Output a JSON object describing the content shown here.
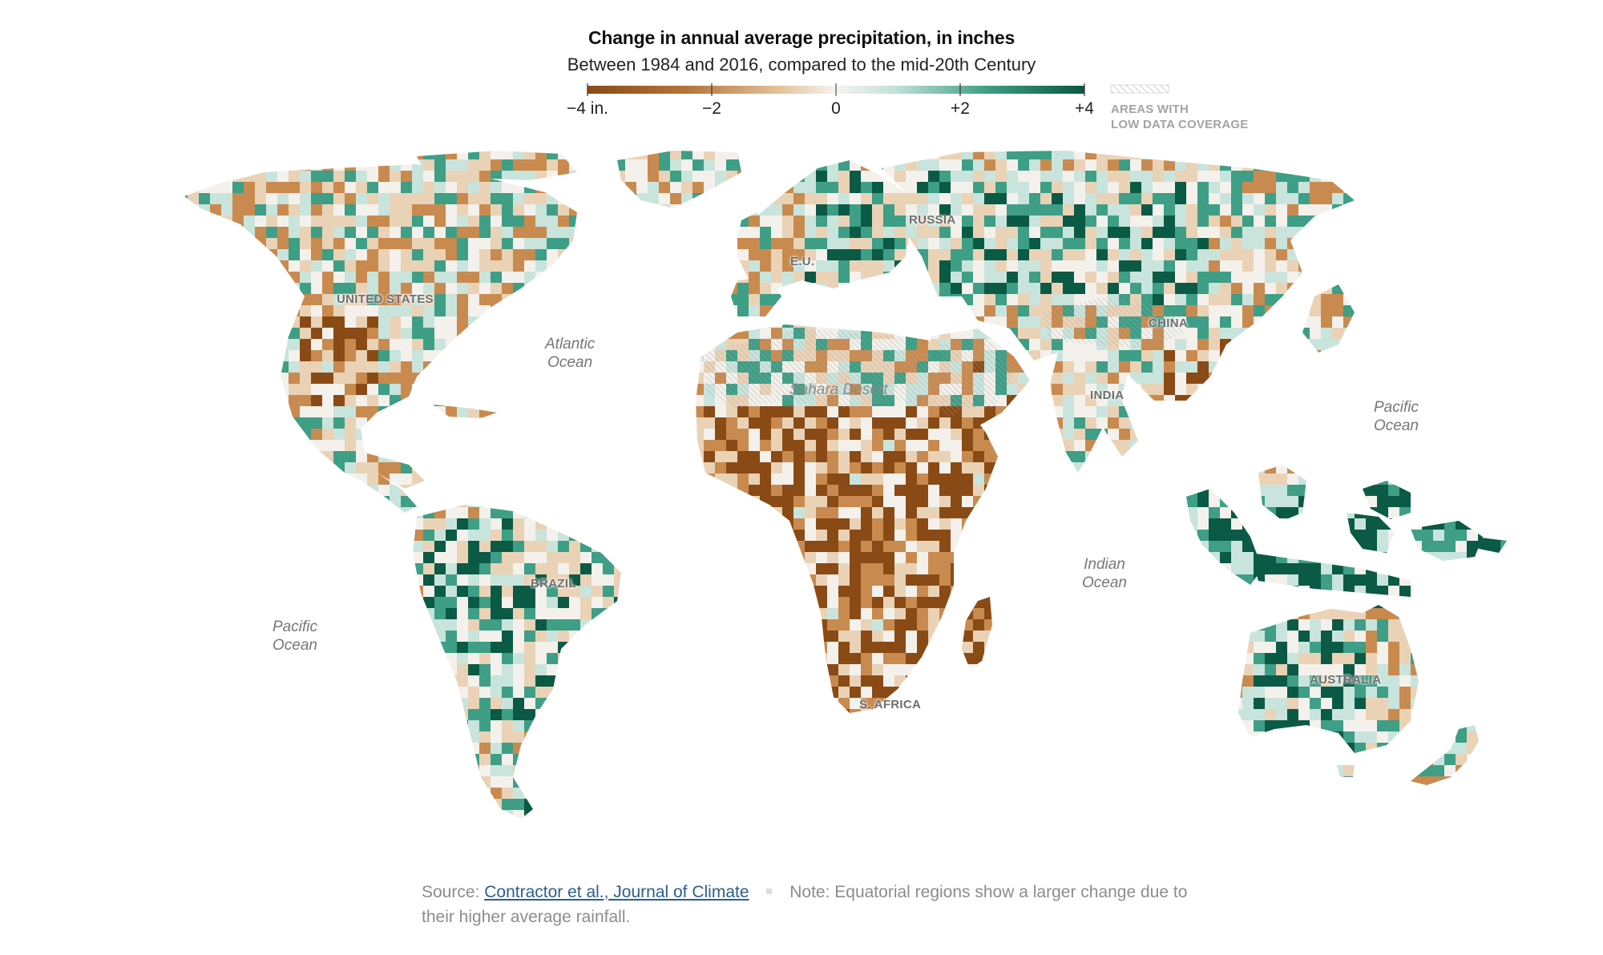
{
  "header": {
    "title": "Change in annual average precipitation, in inches",
    "subtitle": "Between 1984 and 2016, compared to the mid-20th Century"
  },
  "legend": {
    "ticks": [
      {
        "value": -4,
        "label": "−4 in."
      },
      {
        "value": -2,
        "label": "−2"
      },
      {
        "value": 0,
        "label": "0"
      },
      {
        "value": 2,
        "label": "+2"
      },
      {
        "value": 4,
        "label": "+4"
      }
    ],
    "range": [
      -4,
      4
    ],
    "low_coverage_line1": "AREAS WITH",
    "low_coverage_line2": "LOW DATA COVERAGE",
    "colors": {
      "dry_dark": "#8a4a16",
      "dry": "#c98a4f",
      "dry_light": "#ead2b6",
      "neutral": "#f4f1ec",
      "wet_light": "#c9e4dc",
      "wet": "#3e9e86",
      "wet_dark": "#0b5a45"
    }
  },
  "map": {
    "places": {
      "us": "UNITED STATES",
      "russia": "RUSSIA",
      "eu": "E.U.",
      "china": "CHINA",
      "india": "INDIA",
      "brazil": "BRAZIL",
      "safrica": "S. AFRICA",
      "australia": "AUSTRALIA"
    },
    "oceans": {
      "atlantic": [
        "Atlantic",
        "Ocean"
      ],
      "pacific_east": [
        "Pacific",
        "Ocean"
      ],
      "pacific_west": [
        "Pacific",
        "Ocean"
      ],
      "indian": [
        "Indian",
        "Ocean"
      ]
    },
    "desert": "Sahara Desert"
  },
  "footer": {
    "source_label": "Source:",
    "source_link": "Contractor et al., Journal of Climate",
    "note_label": "Note:",
    "note_text": "Equatorial regions show a larger change due to their higher average rainfall."
  }
}
